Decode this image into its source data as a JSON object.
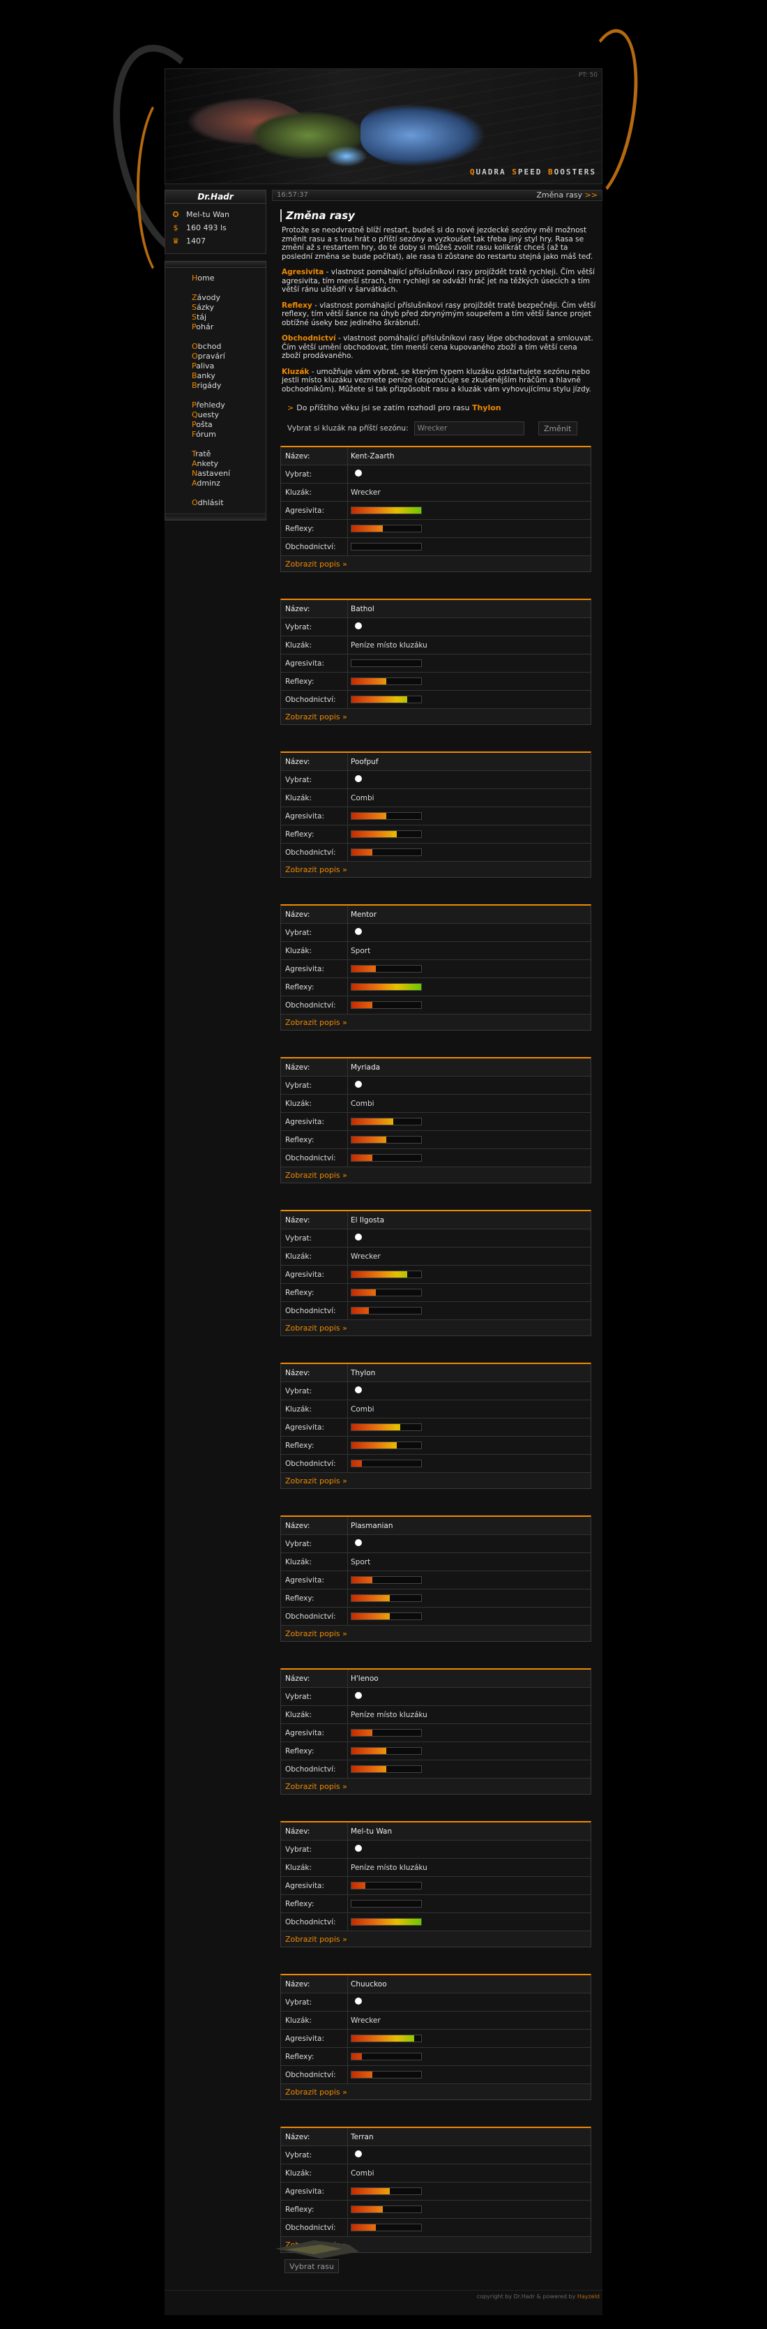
{
  "banner": {
    "counter": "PT: 50",
    "logo": [
      "UADRA ",
      "PEED ",
      "OOSTERS"
    ],
    "logo_initials": [
      "Q",
      "S",
      "B"
    ]
  },
  "user": {
    "name": "Dr.Hadr",
    "race": "Mel-tu Wan",
    "money": "160 493 ls",
    "points": "1407"
  },
  "nav": {
    "groups": [
      [
        "Home"
      ],
      [
        "Závody",
        "Sázky",
        "Stáj",
        "Pohár"
      ],
      [
        "Obchod",
        "Opravárí",
        "Paliva",
        "Banky",
        "Brigády"
      ],
      [
        "Přehledy",
        "Questy",
        "Pošta",
        "Fórum"
      ],
      [
        "Tratě",
        "Ankety",
        "Nastavení",
        "Adminz"
      ],
      [
        "Odhlásit"
      ]
    ]
  },
  "topbar": {
    "time": "16:57:37",
    "crumb": "Změna rasy",
    "crumb_arrows": ">>"
  },
  "title": "Změna rasy",
  "intro": {
    "p1": "Protože se neodvratně blíží restart, budeš si do nové jezdecké sezóny měl možnost změnit rasu a s tou hrát o příští sezóny a vyzkoušet tak třeba jiný styl hry. Rasa se změní až s restartem hry, do té doby si můžeš zvolit rasu kolikrát chceš (až ta poslední změna se bude počítat), ale rasa ti zůstane do restartu stejná jako máš teď.",
    "p2_term": "Agresivita",
    "p2": " - vlastnost pomáhající příslušníkovi rasy projíždět tratě rychleji. Čím větší agresivita, tím menší strach, tím rychleji se odváží hráč jet na těžkých úsecích a tím větší ránu uštědří v šarvátkách.",
    "p3_term": "Reflexy",
    "p3": " - vlastnost pomáhající příslušníkovi rasy projíždět tratě bezpečněji. Čím větší reflexy, tím větší šance na úhyb před zbrynýmým soupeřem a tím větší šance projet obtížné úseky bez jediného škrábnutí.",
    "p4_term": "Obchodnictví",
    "p4": " - vlastnost pomáhající příslušníkovi rasy lépe obchodovat a smlouvat. Čím větší umění obchodovat, tím menší cena kupovaného zboží a tím větší cena zboží prodávaného.",
    "p5_term": "Kluzák",
    "p5": " - umožňuje vám vybrat, se kterým typem kluzáku odstartujete sezónu nebo jestli místo kluzáku vezmete peníze (doporučuje se zkušenějším hráčům a hlavně obchodníkům). Můžete si tak přizpůsobit rasu a kluzák vám vyhovujícímu stylu jízdy."
  },
  "vote": {
    "arrow": ">",
    "text": "Do příštího věku jsi se zatím rozhodl pro rasu",
    "race": "Thylon"
  },
  "pick": {
    "label": "Vybrat si kluzák na příští sezónu:",
    "value": "Wrecker",
    "button": "Změnit"
  },
  "labels": {
    "name": "Název:",
    "select": "Vybrat:",
    "glider": "Kluzák:",
    "agg": "Agresivita:",
    "ref": "Reflexy:",
    "trade": "Obchodnictví:",
    "more": "Zobrazit popis »"
  },
  "races": [
    {
      "name": "Kent-Zaarth",
      "glider": "Wrecker",
      "agg": 1.0,
      "ref": 0.45,
      "trade": 0.0
    },
    {
      "name": "Bathol",
      "glider": "Peníze místo kluzáku",
      "agg": 0.0,
      "ref": 0.5,
      "trade": 0.8
    },
    {
      "name": "Poofpuf",
      "glider": "Combi",
      "agg": 0.5,
      "ref": 0.65,
      "trade": 0.3
    },
    {
      "name": "Mentor",
      "glider": "Sport",
      "agg": 0.35,
      "ref": 1.0,
      "trade": 0.3
    },
    {
      "name": "Myriada",
      "glider": "Combi",
      "agg": 0.6,
      "ref": 0.5,
      "trade": 0.3
    },
    {
      "name": "El Ilgosta",
      "glider": "Wrecker",
      "agg": 0.8,
      "ref": 0.35,
      "trade": 0.25
    },
    {
      "name": "Thylon",
      "glider": "Combi",
      "agg": 0.7,
      "ref": 0.65,
      "trade": 0.15
    },
    {
      "name": "Plasmanian",
      "glider": "Sport",
      "agg": 0.3,
      "ref": 0.55,
      "trade": 0.55
    },
    {
      "name": "H'lenoo",
      "glider": "Peníze místo kluzáku",
      "agg": 0.3,
      "ref": 0.5,
      "trade": 0.5
    },
    {
      "name": "Mel-tu Wan",
      "glider": "Peníze místo kluzáku",
      "agg": 0.2,
      "ref": 0.0,
      "trade": 1.0
    },
    {
      "name": "Chuuckoo",
      "glider": "Wrecker",
      "agg": 0.9,
      "ref": 0.15,
      "trade": 0.3
    },
    {
      "name": "Terran",
      "glider": "Combi",
      "agg": 0.55,
      "ref": 0.45,
      "trade": 0.35
    }
  ],
  "submit": "Vybrat rasu",
  "footer": {
    "prefix": "copyright by Dr.Hadr & powered by ",
    "brand": "Hayzeld"
  }
}
